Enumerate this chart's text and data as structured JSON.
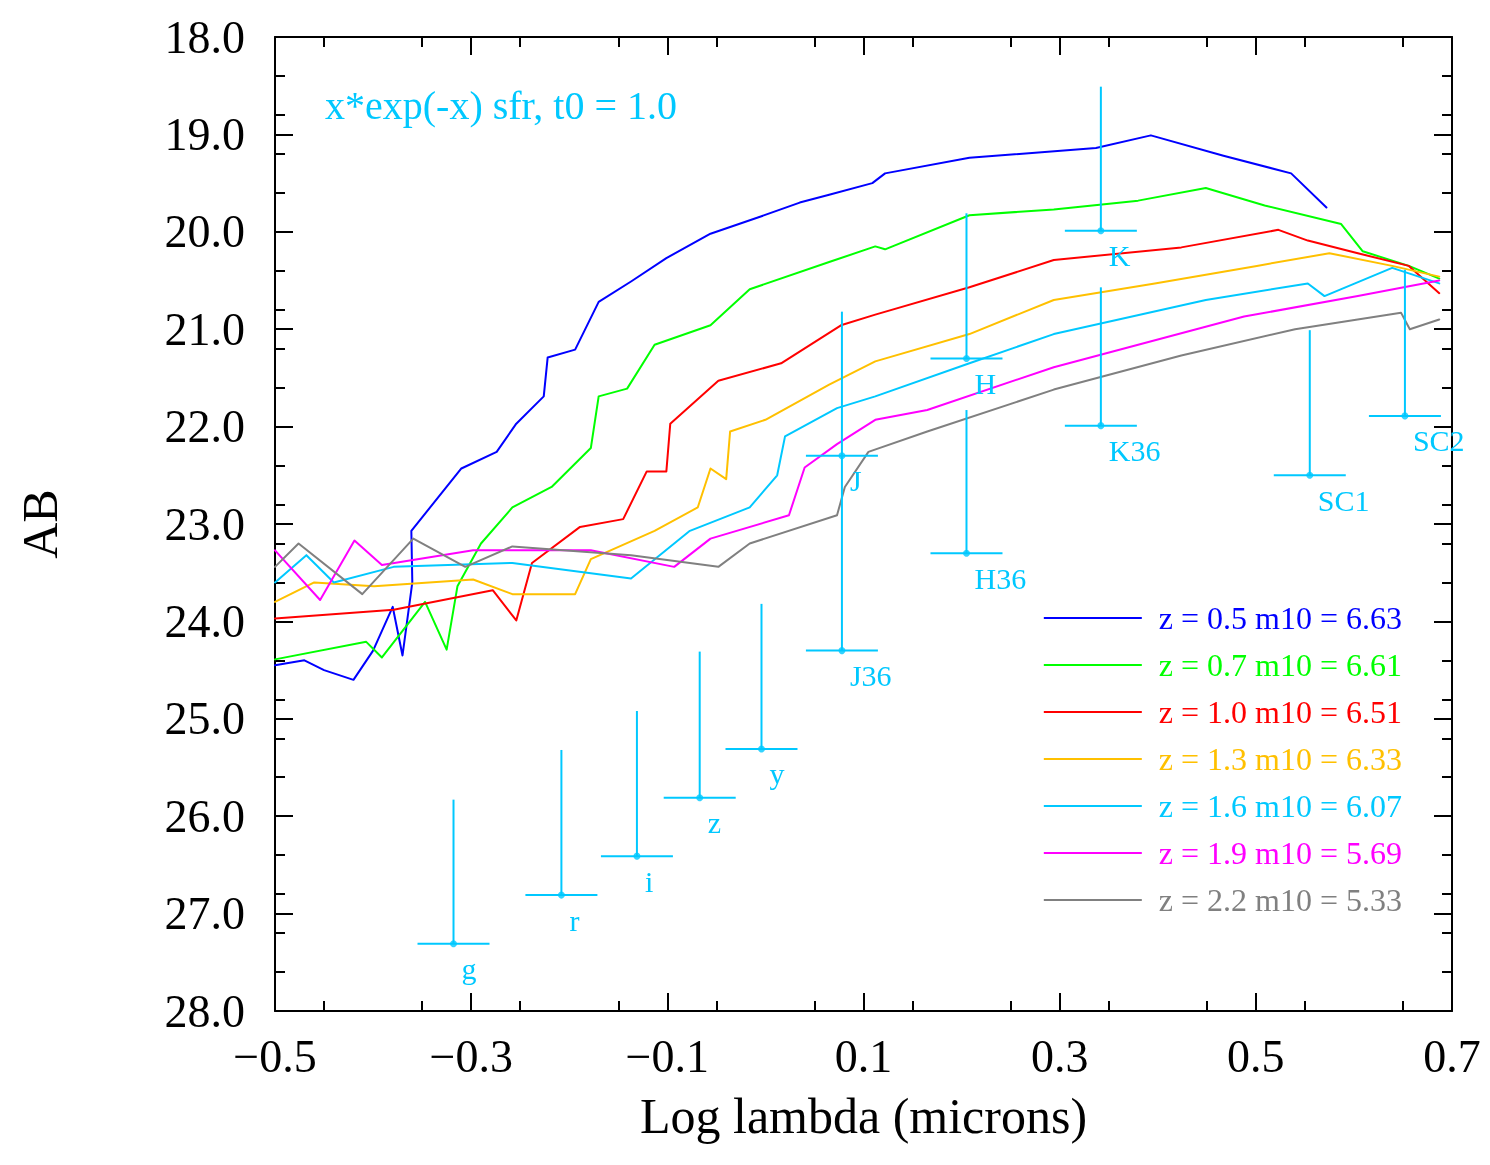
{
  "chart_data": {
    "type": "line",
    "title": "x*exp(-x) sfr, t0 = 1.0",
    "xlabel": "Log lambda (microns)",
    "ylabel": "AB",
    "xlim": [
      -0.5,
      0.7
    ],
    "xticks": [
      {
        "value": -0.5,
        "label": "−0.5"
      },
      {
        "value": -0.3,
        "label": "−0.3"
      },
      {
        "value": -0.1,
        "label": "−0.1"
      },
      {
        "value": 0.1,
        "label": "0.1"
      },
      {
        "value": 0.3,
        "label": "0.3"
      },
      {
        "value": 0.5,
        "label": "0.5"
      },
      {
        "value": 0.7,
        "label": "0.7"
      }
    ],
    "ylim": [
      28,
      18
    ],
    "yticks": [
      {
        "value": 18,
        "label": "18.0"
      },
      {
        "value": 19,
        "label": "19.0"
      },
      {
        "value": 20,
        "label": "20.0"
      },
      {
        "value": 21,
        "label": "21.0"
      },
      {
        "value": 22,
        "label": "22.0"
      },
      {
        "value": 23,
        "label": "23.0"
      },
      {
        "value": 24,
        "label": "24.0"
      },
      {
        "value": 25,
        "label": "25.0"
      },
      {
        "value": 26,
        "label": "26.0"
      },
      {
        "value": 27,
        "label": "27.0"
      },
      {
        "value": 28,
        "label": "28.0"
      }
    ],
    "marker": "none",
    "line_style": "solid",
    "legend": "bottom right",
    "series": [
      {
        "name": "z = 0.5 m10 = 6.63",
        "color": "#0000ff",
        "x": [
          -0.5,
          -0.47,
          -0.45,
          -0.42,
          -0.4,
          -0.38,
          -0.37,
          -0.36,
          -0.361,
          -0.31,
          -0.274,
          -0.254,
          -0.226,
          -0.222,
          -0.194,
          -0.17,
          -0.137,
          -0.101,
          -0.056,
          -0.004,
          0.035,
          0.065,
          0.109,
          0.122,
          0.208,
          0.337,
          0.393,
          0.467,
          0.536,
          0.572
        ],
        "values": [
          24.45,
          24.4,
          24.5,
          24.6,
          24.3,
          23.85,
          24.35,
          23.6,
          23.07,
          22.43,
          22.26,
          21.97,
          21.69,
          21.29,
          21.21,
          20.72,
          20.51,
          20.27,
          20.02,
          19.84,
          19.7,
          19.62,
          19.5,
          19.4,
          19.24,
          19.14,
          19.01,
          19.22,
          19.4,
          19.75
        ]
      },
      {
        "name": "z = 0.7 m10 = 6.61",
        "color": "#00ff00",
        "x": [
          -0.5,
          -0.407,
          -0.391,
          -0.347,
          -0.325,
          -0.314,
          -0.29,
          -0.258,
          -0.218,
          -0.178,
          -0.17,
          -0.141,
          -0.113,
          -0.056,
          -0.016,
          0.065,
          0.112,
          0.122,
          0.208,
          0.294,
          0.38,
          0.449,
          0.509,
          0.587,
          0.609,
          0.656,
          0.687
        ],
        "values": [
          24.39,
          24.21,
          24.37,
          23.8,
          24.29,
          23.64,
          23.2,
          22.83,
          22.62,
          22.22,
          21.69,
          21.61,
          21.16,
          20.96,
          20.59,
          20.31,
          20.15,
          20.18,
          19.83,
          19.77,
          19.68,
          19.55,
          19.73,
          19.92,
          20.2,
          20.35,
          20.48
        ]
      },
      {
        "name": "z = 1.0 m10 = 6.51",
        "color": "#ff0000",
        "x": [
          -0.5,
          -0.379,
          -0.278,
          -0.254,
          -0.238,
          -0.189,
          -0.145,
          -0.121,
          -0.101,
          -0.097,
          -0.048,
          0.016,
          0.077,
          0.112,
          0.208,
          0.294,
          0.424,
          0.523,
          0.553,
          0.604,
          0.656,
          0.687
        ],
        "values": [
          23.97,
          23.88,
          23.68,
          23.99,
          23.4,
          23.03,
          22.95,
          22.46,
          22.46,
          21.97,
          21.53,
          21.35,
          20.96,
          20.85,
          20.57,
          20.29,
          20.16,
          19.98,
          20.09,
          20.22,
          20.35,
          20.63
        ]
      },
      {
        "name": "z = 1.3 m10 = 6.33",
        "color": "#ffc000",
        "x": [
          -0.5,
          -0.46,
          -0.399,
          -0.298,
          -0.258,
          -0.194,
          -0.178,
          -0.113,
          -0.069,
          -0.056,
          -0.04,
          -0.036,
          0,
          0.065,
          0.112,
          0.208,
          0.294,
          0.397,
          0.501,
          0.575,
          0.639,
          0.687
        ],
        "values": [
          23.8,
          23.6,
          23.64,
          23.57,
          23.72,
          23.72,
          23.36,
          23.07,
          22.83,
          22.43,
          22.54,
          22.05,
          21.93,
          21.57,
          21.33,
          21.05,
          20.7,
          20.53,
          20.35,
          20.22,
          20.35,
          20.46
        ]
      },
      {
        "name": "z = 1.6 m10 = 6.07",
        "color": "#00c8ff",
        "x": [
          -0.5,
          -0.468,
          -0.44,
          -0.379,
          -0.258,
          -0.137,
          -0.077,
          -0.016,
          0.012,
          0.02,
          0.073,
          0.112,
          0.208,
          0.294,
          0.449,
          0.553,
          0.57,
          0.639,
          0.687
        ],
        "values": [
          23.6,
          23.32,
          23.6,
          23.44,
          23.4,
          23.56,
          23.07,
          22.83,
          22.5,
          22.1,
          21.81,
          21.69,
          21.35,
          21.05,
          20.7,
          20.53,
          20.66,
          20.37,
          20.53
        ]
      },
      {
        "name": "z = 1.9 m10 = 5.69",
        "color": "#ff00ff",
        "x": [
          -0.5,
          -0.454,
          -0.419,
          -0.391,
          -0.298,
          -0.178,
          -0.093,
          -0.056,
          0.024,
          0.04,
          0.073,
          0.112,
          0.165,
          0.294,
          0.488,
          0.604,
          0.687
        ],
        "values": [
          23.27,
          23.78,
          23.17,
          23.42,
          23.27,
          23.27,
          23.44,
          23.15,
          22.91,
          22.42,
          22.18,
          21.93,
          21.83,
          21.39,
          20.87,
          20.66,
          20.5
        ]
      },
      {
        "name": "z = 2.2 m10 = 5.33",
        "color": "#808080",
        "x": [
          -0.5,
          -0.476,
          -0.411,
          -0.359,
          -0.306,
          -0.258,
          -0.137,
          -0.048,
          -0.016,
          0.073,
          0.081,
          0.105,
          0.165,
          0.294,
          0.424,
          0.54,
          0.648,
          0.657,
          0.687
        ],
        "values": [
          23.44,
          23.2,
          23.72,
          23.15,
          23.44,
          23.23,
          23.32,
          23.44,
          23.2,
          22.91,
          22.62,
          22.26,
          22.05,
          21.62,
          21.27,
          21.0,
          20.83,
          21.0,
          20.9
        ]
      },
      {
        "type": "scatter",
        "color": "#00c8ff",
        "marker": "circle",
        "x": [
          -0.318,
          -0.208,
          -0.131,
          -0.067,
          -0.004,
          0.078,
          0.078,
          0.205,
          0.205,
          0.342,
          0.342,
          0.555,
          0.652
        ],
        "values": [
          27.31,
          26.81,
          26.41,
          25.81,
          25.31,
          22.3,
          24.3,
          21.3,
          23.3,
          19.99,
          21.99,
          22.5,
          21.89
        ],
        "errors": [
          [
            25.83,
            27.31
          ],
          [
            25.32,
            26.81
          ],
          [
            24.92,
            26.41
          ],
          [
            24.31,
            25.81
          ],
          [
            23.82,
            25.31
          ],
          [
            20.82,
            22.3
          ],
          [
            22.3,
            24.3
          ],
          [
            19.81,
            21.3
          ],
          [
            21.83,
            23.3
          ],
          [
            18.51,
            19.99
          ],
          [
            20.57,
            21.99
          ],
          [
            21.01,
            22.5
          ],
          [
            20.39,
            21.89
          ]
        ]
      }
    ],
    "annotations": [
      {
        "text": "g",
        "x": -0.318,
        "y": 27.31
      },
      {
        "text": "r",
        "x": -0.208,
        "y": 26.81
      },
      {
        "text": "i",
        "x": -0.131,
        "y": 26.41
      },
      {
        "text": "z",
        "x": -0.067,
        "y": 25.81
      },
      {
        "text": "y",
        "x": -0.004,
        "y": 25.31
      },
      {
        "text": "J",
        "x": 0.078,
        "y": 22.3
      },
      {
        "text": "J36",
        "x": 0.078,
        "y": 24.3
      },
      {
        "text": "H",
        "x": 0.205,
        "y": 21.3
      },
      {
        "text": "H36",
        "x": 0.205,
        "y": 23.3
      },
      {
        "text": "K",
        "x": 0.342,
        "y": 19.99
      },
      {
        "text": "K36",
        "x": 0.342,
        "y": 21.99
      },
      {
        "text": "SC1",
        "x": 0.555,
        "y": 22.5
      },
      {
        "text": "SC2",
        "x": 0.652,
        "y": 21.89
      }
    ]
  }
}
